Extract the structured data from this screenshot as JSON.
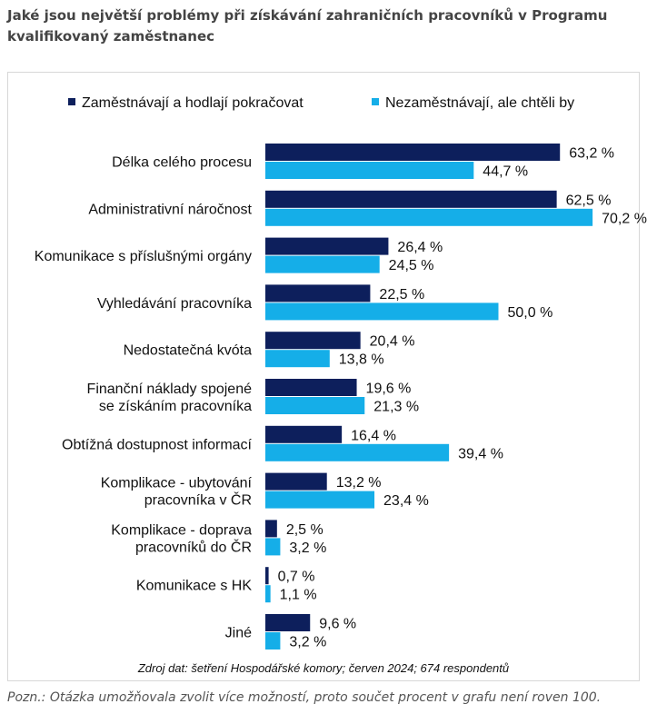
{
  "page": {
    "title": "Jaké jsou největší problémy při získávání zahraničních pracovníků v Programu kvalifikovaný zaměstnanec",
    "note": "Pozn.: Otázka umožňovala zvolit více možností, proto součet procent v grafu není roven 100."
  },
  "chart_data": {
    "type": "bar",
    "orientation": "horizontal",
    "categories": [
      [
        "Délka celého procesu"
      ],
      [
        "Administrativní náročnost"
      ],
      [
        "Komunikace s příslušnými orgány"
      ],
      [
        "Vyhledávání pracovníka"
      ],
      [
        "Nedostatečná kvóta"
      ],
      [
        "Finanční náklady spojené",
        "se získáním pracovníka"
      ],
      [
        "Obtížná dostupnost informací"
      ],
      [
        "Komplikace - ubytování",
        "pracovníka v ČR"
      ],
      [
        "Komplikace - doprava",
        "pracovníků do ČR"
      ],
      [
        "Komunikace s HK"
      ],
      [
        "Jiné"
      ]
    ],
    "series": [
      {
        "name": "Zaměstnávají a hodlají pokračovat",
        "color": "#0d1f5c",
        "values": [
          63.2,
          62.5,
          26.4,
          22.5,
          20.4,
          19.6,
          16.4,
          13.2,
          2.5,
          0.7,
          9.6
        ],
        "labels": [
          "63,2 %",
          "62,5 %",
          "26,4 %",
          "22,5 %",
          "20,4 %",
          "19,6 %",
          "16,4 %",
          "13,2 %",
          "2,5 %",
          "0,7 %",
          "9,6 %"
        ]
      },
      {
        "name": "Nezaměstnávají, ale chtěli by",
        "color": "#15aee8",
        "values": [
          44.7,
          70.2,
          24.5,
          50.0,
          13.8,
          21.3,
          39.4,
          23.4,
          3.2,
          1.1,
          3.2
        ],
        "labels": [
          "44,7 %",
          "70,2 %",
          "24,5 %",
          "50,0 %",
          "13,8 %",
          "21,3 %",
          "39,4 %",
          "23,4 %",
          "3,2 %",
          "1,1 %",
          "3,2 %"
        ]
      }
    ],
    "xlim": [
      0,
      100
    ],
    "grid": false,
    "legend": "top",
    "source": "Zdroj dat: šetření Hospodářské komory; červen 2024; 674 respondentů"
  }
}
